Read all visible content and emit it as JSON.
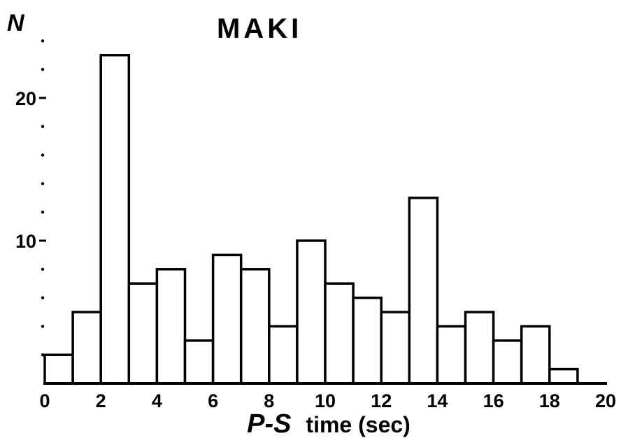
{
  "chart_data": {
    "type": "bar",
    "title": "MAKI",
    "ylabel": "N",
    "xlabel_italic": "P-S",
    "xlabel_rest": "time (sec)",
    "bin_width": 1,
    "bins": [
      {
        "x0": 0,
        "x1": 1,
        "count": 2
      },
      {
        "x0": 1,
        "x1": 2,
        "count": 5
      },
      {
        "x0": 2,
        "x1": 3,
        "count": 23
      },
      {
        "x0": 3,
        "x1": 4,
        "count": 7
      },
      {
        "x0": 4,
        "x1": 5,
        "count": 8
      },
      {
        "x0": 5,
        "x1": 6,
        "count": 3
      },
      {
        "x0": 6,
        "x1": 7,
        "count": 9
      },
      {
        "x0": 7,
        "x1": 8,
        "count": 8
      },
      {
        "x0": 8,
        "x1": 9,
        "count": 4
      },
      {
        "x0": 9,
        "x1": 10,
        "count": 10
      },
      {
        "x0": 10,
        "x1": 11,
        "count": 7
      },
      {
        "x0": 11,
        "x1": 12,
        "count": 6
      },
      {
        "x0": 12,
        "x1": 13,
        "count": 5
      },
      {
        "x0": 13,
        "x1": 14,
        "count": 13
      },
      {
        "x0": 14,
        "x1": 15,
        "count": 4
      },
      {
        "x0": 15,
        "x1": 16,
        "count": 5
      },
      {
        "x0": 16,
        "x1": 17,
        "count": 3
      },
      {
        "x0": 17,
        "x1": 18,
        "count": 4
      },
      {
        "x0": 18,
        "x1": 19,
        "count": 1
      }
    ],
    "xlim": [
      0,
      20
    ],
    "ylim": [
      0,
      23
    ],
    "x_ticks": [
      "0",
      "2",
      "4",
      "6",
      "8",
      "10",
      "12",
      "14",
      "16",
      "18",
      "20"
    ],
    "y_ticks": [
      {
        "value": 10,
        "label": "10"
      },
      {
        "value": 20,
        "label": "20"
      }
    ],
    "y_minor_ticks": [
      2,
      4,
      6,
      8,
      12,
      14,
      16,
      18,
      22,
      24
    ],
    "grid": false,
    "legend": "none"
  }
}
